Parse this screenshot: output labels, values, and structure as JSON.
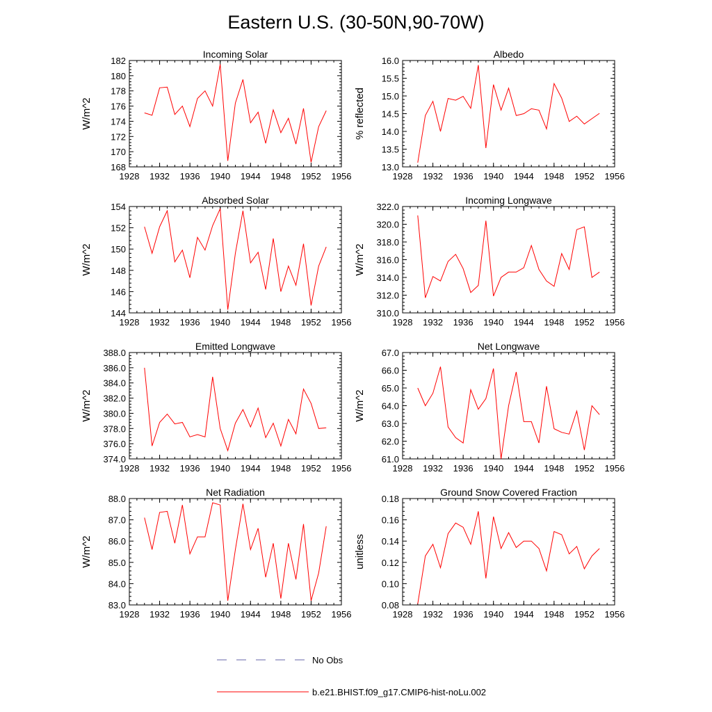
{
  "figure": {
    "title": "Eastern U.S. (30-50N,90-70W)",
    "line_color": "#ff0000",
    "obs_color": "#6666aa"
  },
  "legend": {
    "obs_label": "No Obs",
    "model_label": "b.e21.BHIST.f09_g17.CMIP6-hist-noLu.002"
  },
  "chart_data": [
    {
      "type": "line",
      "title": "Incoming Solar",
      "ylabel": "W/m^2",
      "xlim": [
        1928,
        1956
      ],
      "xticks": [
        "1928",
        "1932",
        "1936",
        "1940",
        "1944",
        "1948",
        "1952",
        "1956"
      ],
      "ylim": [
        168,
        182
      ],
      "yticks": [
        "168",
        "170",
        "172",
        "174",
        "176",
        "178",
        "180",
        "182"
      ],
      "x": [
        1930,
        1931,
        1932,
        1933,
        1934,
        1935,
        1936,
        1937,
        1938,
        1939,
        1940,
        1941,
        1942,
        1943,
        1944,
        1945,
        1946,
        1947,
        1948,
        1949,
        1950,
        1951,
        1952,
        1953,
        1954
      ],
      "series": [
        {
          "name": "b.e21.BHIST.f09_g17.CMIP6-hist-noLu.002",
          "values": [
            175.1,
            174.8,
            178.4,
            178.5,
            174.9,
            176.0,
            173.3,
            177.0,
            178.0,
            176.0,
            181.5,
            168.8,
            176.4,
            179.5,
            173.8,
            175.2,
            171.1,
            175.5,
            172.5,
            174.4,
            171.0,
            175.7,
            168.6,
            173.3,
            175.4
          ]
        }
      ]
    },
    {
      "type": "line",
      "title": "Albedo",
      "ylabel": "% reflected",
      "xlim": [
        1928,
        1956
      ],
      "xticks": [
        "1928",
        "1932",
        "1936",
        "1940",
        "1944",
        "1948",
        "1952",
        "1956"
      ],
      "ylim": [
        13.0,
        16.0
      ],
      "yticks": [
        "13.0",
        "13.5",
        "14.0",
        "14.5",
        "15.0",
        "15.5",
        "16.0"
      ],
      "x": [
        1930,
        1931,
        1932,
        1933,
        1934,
        1935,
        1936,
        1937,
        1938,
        1939,
        1940,
        1941,
        1942,
        1943,
        1944,
        1945,
        1946,
        1947,
        1948,
        1949,
        1950,
        1951,
        1952,
        1953,
        1954
      ],
      "series": [
        {
          "name": "b.e21.BHIST.f09_g17.CMIP6-hist-noLu.002",
          "values": [
            13.12,
            14.45,
            14.85,
            14.0,
            14.93,
            14.88,
            14.99,
            14.65,
            15.87,
            13.53,
            15.32,
            14.6,
            15.22,
            14.45,
            14.5,
            14.64,
            14.6,
            14.07,
            15.35,
            14.94,
            14.28,
            14.43,
            14.21,
            14.36,
            14.51
          ]
        }
      ]
    },
    {
      "type": "line",
      "title": "Absorbed Solar",
      "ylabel": "W/m^2",
      "xlim": [
        1928,
        1956
      ],
      "xticks": [
        "1928",
        "1932",
        "1936",
        "1940",
        "1944",
        "1948",
        "1952",
        "1956"
      ],
      "ylim": [
        144,
        154
      ],
      "yticks": [
        "144",
        "146",
        "148",
        "150",
        "152",
        "154"
      ],
      "x": [
        1930,
        1931,
        1932,
        1933,
        1934,
        1935,
        1936,
        1937,
        1938,
        1939,
        1940,
        1941,
        1942,
        1943,
        1944,
        1945,
        1946,
        1947,
        1948,
        1949,
        1950,
        1951,
        1952,
        1953,
        1954
      ],
      "series": [
        {
          "name": "b.e21.BHIST.f09_g17.CMIP6-hist-noLu.002",
          "values": [
            152.1,
            149.6,
            152.1,
            153.6,
            148.8,
            149.9,
            147.3,
            151.1,
            149.9,
            152.2,
            153.8,
            144.3,
            149.6,
            153.6,
            148.7,
            149.7,
            146.2,
            151.0,
            146.0,
            148.4,
            146.6,
            150.5,
            144.7,
            148.4,
            150.2
          ]
        }
      ]
    },
    {
      "type": "line",
      "title": "Incoming Longwave",
      "ylabel": "W/m^2",
      "xlim": [
        1928,
        1956
      ],
      "xticks": [
        "1928",
        "1932",
        "1936",
        "1940",
        "1944",
        "1948",
        "1952",
        "1956"
      ],
      "ylim": [
        310.0,
        322.0
      ],
      "yticks": [
        "310.0",
        "312.0",
        "314.0",
        "316.0",
        "318.0",
        "320.0",
        "322.0"
      ],
      "x": [
        1930,
        1931,
        1932,
        1933,
        1934,
        1935,
        1936,
        1937,
        1938,
        1939,
        1940,
        1941,
        1942,
        1943,
        1944,
        1945,
        1946,
        1947,
        1948,
        1949,
        1950,
        1951,
        1952,
        1953,
        1954
      ],
      "series": [
        {
          "name": "b.e21.BHIST.f09_g17.CMIP6-hist-noLu.002",
          "values": [
            321.0,
            311.7,
            314.1,
            313.6,
            315.8,
            316.6,
            315.0,
            312.3,
            313.1,
            320.4,
            311.9,
            314.0,
            314.6,
            314.6,
            315.1,
            317.6,
            314.9,
            313.6,
            313.0,
            316.7,
            314.9,
            319.4,
            319.7,
            314.0,
            314.6
          ]
        }
      ]
    },
    {
      "type": "line",
      "title": "Emitted Longwave",
      "ylabel": "W/m^2",
      "xlim": [
        1928,
        1956
      ],
      "xticks": [
        "1928",
        "1932",
        "1936",
        "1940",
        "1944",
        "1948",
        "1952",
        "1956"
      ],
      "ylim": [
        374.0,
        388.0
      ],
      "yticks": [
        "374.0",
        "376.0",
        "378.0",
        "380.0",
        "382.0",
        "384.0",
        "386.0",
        "388.0"
      ],
      "x": [
        1930,
        1931,
        1932,
        1933,
        1934,
        1935,
        1936,
        1937,
        1938,
        1939,
        1940,
        1941,
        1942,
        1943,
        1944,
        1945,
        1946,
        1947,
        1948,
        1949,
        1950,
        1951,
        1952,
        1953,
        1954
      ],
      "series": [
        {
          "name": "b.e21.BHIST.f09_g17.CMIP6-hist-noLu.002",
          "values": [
            386.0,
            375.7,
            378.8,
            379.9,
            378.6,
            378.8,
            376.9,
            377.2,
            376.9,
            384.8,
            378.0,
            375.1,
            378.7,
            380.5,
            378.2,
            380.7,
            376.8,
            378.7,
            375.7,
            379.2,
            377.3,
            383.2,
            381.3,
            378.0,
            378.1
          ]
        }
      ]
    },
    {
      "type": "line",
      "title": "Net Longwave",
      "ylabel": "W/m^2",
      "xlim": [
        1928,
        1956
      ],
      "xticks": [
        "1928",
        "1932",
        "1936",
        "1940",
        "1944",
        "1948",
        "1952",
        "1956"
      ],
      "ylim": [
        61.0,
        67.0
      ],
      "yticks": [
        "61.0",
        "62.0",
        "63.0",
        "64.0",
        "65.0",
        "66.0",
        "67.0"
      ],
      "x": [
        1930,
        1931,
        1932,
        1933,
        1934,
        1935,
        1936,
        1937,
        1938,
        1939,
        1940,
        1941,
        1942,
        1943,
        1944,
        1945,
        1946,
        1947,
        1948,
        1949,
        1950,
        1951,
        1952,
        1953,
        1954
      ],
      "series": [
        {
          "name": "b.e21.BHIST.f09_g17.CMIP6-hist-noLu.002",
          "values": [
            65.0,
            64.0,
            64.7,
            66.2,
            62.8,
            62.2,
            61.9,
            64.9,
            63.8,
            64.4,
            66.1,
            61.0,
            64.0,
            65.9,
            63.1,
            63.1,
            61.9,
            65.1,
            62.7,
            62.5,
            62.4,
            63.7,
            61.5,
            64.0,
            63.5
          ]
        }
      ]
    },
    {
      "type": "line",
      "title": "Net Radiation",
      "ylabel": "W/m^2",
      "xlim": [
        1928,
        1956
      ],
      "xticks": [
        "1928",
        "1932",
        "1936",
        "1940",
        "1944",
        "1948",
        "1952",
        "1956"
      ],
      "ylim": [
        83.0,
        88.0
      ],
      "yticks": [
        "83.0",
        "84.0",
        "85.0",
        "86.0",
        "87.0",
        "88.0"
      ],
      "x": [
        1930,
        1931,
        1932,
        1933,
        1934,
        1935,
        1936,
        1937,
        1938,
        1939,
        1940,
        1941,
        1942,
        1943,
        1944,
        1945,
        1946,
        1947,
        1948,
        1949,
        1950,
        1951,
        1952,
        1953,
        1954
      ],
      "series": [
        {
          "name": "b.e21.BHIST.f09_g17.CMIP6-hist-noLu.002",
          "values": [
            87.1,
            85.6,
            87.35,
            87.4,
            85.9,
            87.7,
            85.4,
            86.2,
            86.2,
            87.8,
            87.7,
            83.2,
            85.6,
            87.75,
            85.6,
            86.6,
            84.3,
            85.9,
            83.3,
            85.9,
            84.2,
            86.8,
            83.2,
            84.5,
            86.7
          ]
        }
      ]
    },
    {
      "type": "line",
      "title": "Ground Snow Covered Fraction",
      "ylabel": "unitless",
      "xlim": [
        1928,
        1956
      ],
      "xticks": [
        "1928",
        "1932",
        "1936",
        "1940",
        "1944",
        "1948",
        "1952",
        "1956"
      ],
      "ylim": [
        0.08,
        0.18
      ],
      "yticks": [
        "0.08",
        "0.10",
        "0.12",
        "0.14",
        "0.16",
        "0.18"
      ],
      "x": [
        1930,
        1931,
        1932,
        1933,
        1934,
        1935,
        1936,
        1937,
        1938,
        1939,
        1940,
        1941,
        1942,
        1943,
        1944,
        1945,
        1946,
        1947,
        1948,
        1949,
        1950,
        1951,
        1952,
        1953,
        1954
      ],
      "series": [
        {
          "name": "b.e21.BHIST.f09_g17.CMIP6-hist-noLu.002",
          "values": [
            0.081,
            0.126,
            0.137,
            0.115,
            0.147,
            0.157,
            0.153,
            0.137,
            0.168,
            0.105,
            0.163,
            0.133,
            0.148,
            0.134,
            0.14,
            0.14,
            0.133,
            0.112,
            0.149,
            0.146,
            0.128,
            0.135,
            0.114,
            0.126,
            0.133
          ]
        }
      ]
    }
  ]
}
